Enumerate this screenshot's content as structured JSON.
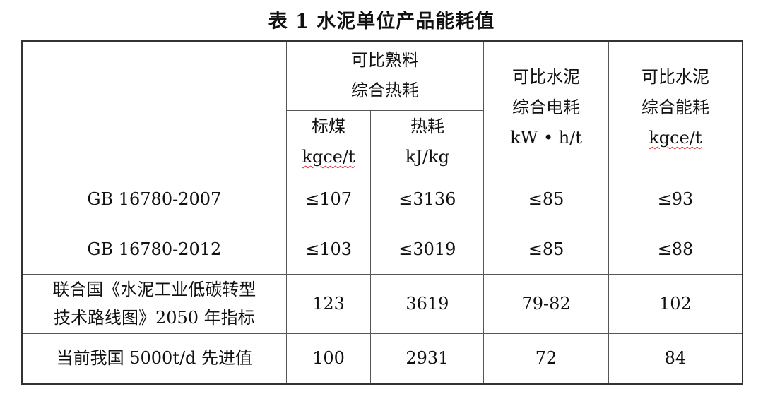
{
  "title": "表 1  水泥单位产品能耗值",
  "header": {
    "clinker_heat": [
      "可比熟料",
      "综合热耗"
    ],
    "coal": {
      "label": "标煤",
      "unit": "kgce/t"
    },
    "heat": {
      "label": "热耗",
      "unit": "kJ/kg"
    },
    "power": {
      "label": [
        "可比水泥",
        "综合电耗"
      ],
      "unit": "kW • h/t"
    },
    "energy": {
      "label": [
        "可比水泥",
        "综合能耗"
      ],
      "unit": "kgce/t"
    }
  },
  "rows": [
    {
      "label": [
        "GB 16780-2007"
      ],
      "values": [
        "≤107",
        "≤3136",
        "≤85",
        "≤93"
      ]
    },
    {
      "label": [
        "GB 16780-2012"
      ],
      "values": [
        "≤103",
        "≤3019",
        "≤85",
        "≤88"
      ]
    },
    {
      "label": [
        "联合国《水泥工业低碳转型",
        "技术路线图》2050 年指标"
      ],
      "values": [
        "123",
        "3619",
        "79-82",
        "102"
      ]
    },
    {
      "label": [
        "当前我国 5000t/d 先进值"
      ],
      "values": [
        "100",
        "2931",
        "72",
        "84"
      ]
    }
  ]
}
